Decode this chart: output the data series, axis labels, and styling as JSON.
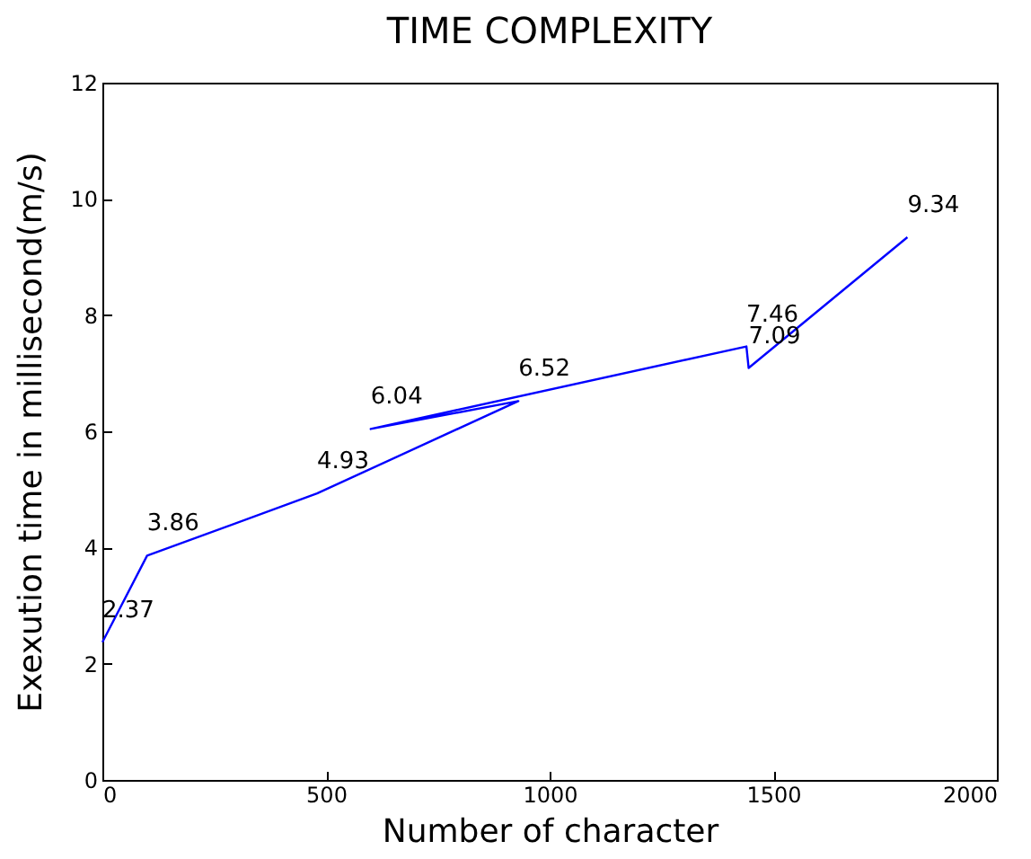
{
  "chart_data": {
    "type": "line",
    "title": "TIME COMPLEXITY",
    "xlabel": "Number of character",
    "ylabel": "Exexution time in millisecond(m/s)",
    "x": [
      0,
      100,
      480,
      930,
      600,
      1440,
      1445,
      1800
    ],
    "values": [
      2.37,
      3.86,
      4.93,
      6.52,
      6.04,
      7.46,
      7.09,
      9.34
    ],
    "color": "#0000ff",
    "data_labels": true,
    "xlim": [
      0,
      2000
    ],
    "xticks": [
      0,
      500,
      1000,
      1500,
      2000
    ],
    "ylim": [
      0,
      12
    ],
    "yticks": [
      0,
      2,
      4,
      6,
      8,
      10,
      12
    ],
    "grid": false
  }
}
